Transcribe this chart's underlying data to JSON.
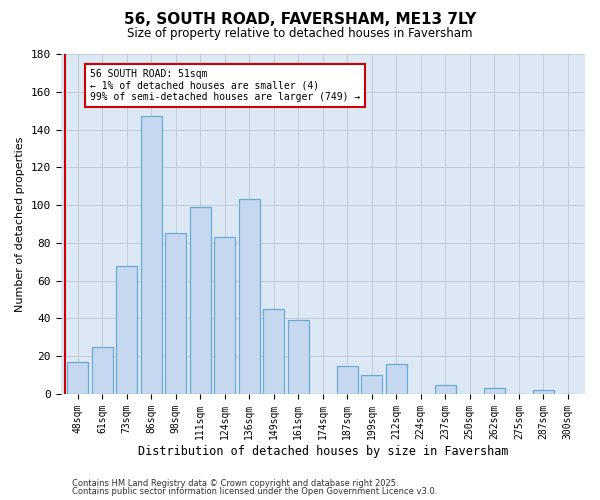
{
  "title": "56, SOUTH ROAD, FAVERSHAM, ME13 7LY",
  "subtitle": "Size of property relative to detached houses in Faversham",
  "xlabel": "Distribution of detached houses by size in Faversham",
  "ylabel": "Number of detached properties",
  "footer_lines": [
    "Contains HM Land Registry data © Crown copyright and database right 2025.",
    "Contains public sector information licensed under the Open Government Licence v3.0."
  ],
  "bins": [
    "48sqm",
    "61sqm",
    "73sqm",
    "86sqm",
    "98sqm",
    "111sqm",
    "124sqm",
    "136sqm",
    "149sqm",
    "161sqm",
    "174sqm",
    "187sqm",
    "199sqm",
    "212sqm",
    "224sqm",
    "237sqm",
    "250sqm",
    "262sqm",
    "275sqm",
    "287sqm",
    "300sqm"
  ],
  "values": [
    17,
    25,
    68,
    147,
    85,
    99,
    83,
    103,
    45,
    39,
    0,
    15,
    10,
    16,
    0,
    5,
    0,
    3,
    0,
    2,
    0
  ],
  "bar_color": "#c5d8f0",
  "bar_edge_color": "#6aaad4",
  "highlight_line_color": "#cc0000",
  "annotation_box_color": "#cc0000",
  "annotation_text": "56 SOUTH ROAD: 51sqm\n← 1% of detached houses are smaller (4)\n99% of semi-detached houses are larger (749) →",
  "ylim": [
    0,
    180
  ],
  "yticks": [
    0,
    20,
    40,
    60,
    80,
    100,
    120,
    140,
    160,
    180
  ],
  "plot_bg_color": "#dce9f5",
  "background_color": "#ffffff",
  "grid_color": "#c0c8d0"
}
